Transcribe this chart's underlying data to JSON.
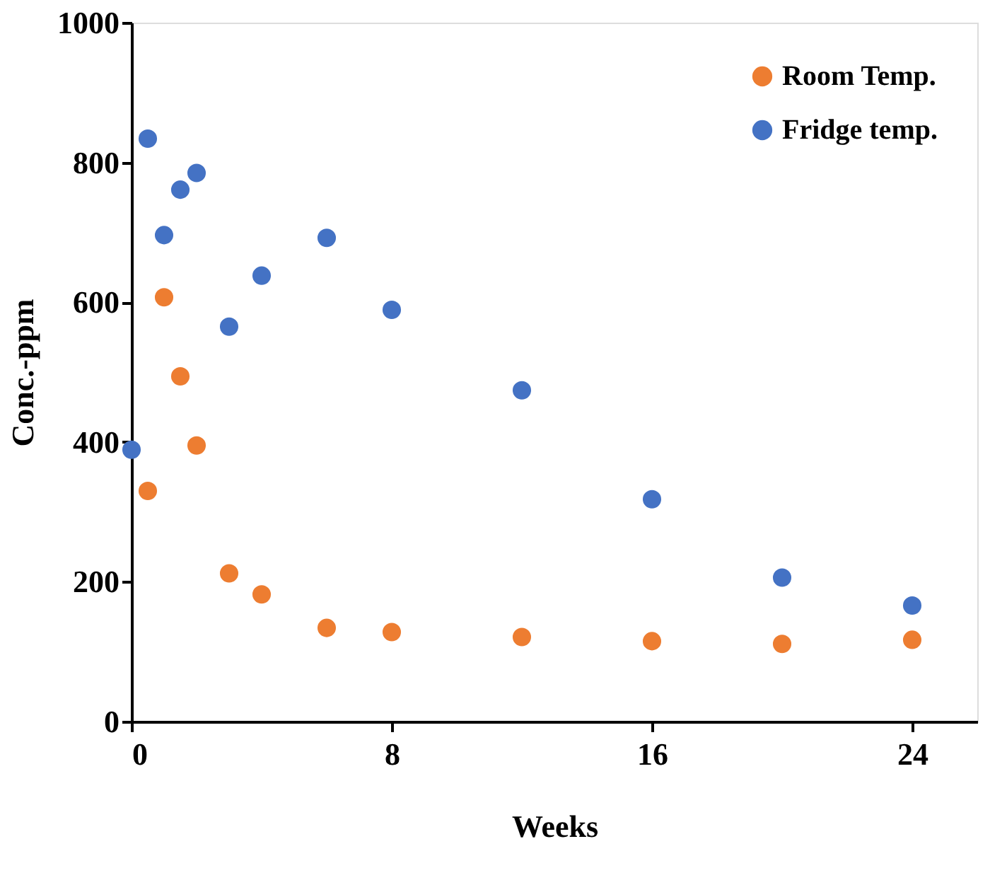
{
  "chart_data": {
    "type": "scatter",
    "xlabel": "Weeks",
    "ylabel": "Conc.-ppm",
    "xlim": [
      0,
      26
    ],
    "xticks": [
      0,
      8,
      16,
      24
    ],
    "ylim": [
      0,
      1000
    ],
    "yticks": [
      0,
      200,
      400,
      600,
      800,
      1000
    ],
    "grid": false,
    "legend": "top right",
    "marker": "circle",
    "series": [
      {
        "name": "Room Temp.",
        "color": "#ed7d31",
        "x": [
          0.5,
          1,
          1.5,
          2,
          3,
          4,
          6,
          8,
          12,
          16,
          20,
          24
        ],
        "values": [
          330,
          607,
          494,
          395,
          212,
          182,
          134,
          128,
          121,
          115,
          111,
          117
        ]
      },
      {
        "name": "Fridge temp.",
        "color": "#4472c4",
        "x": [
          0,
          0.5,
          1,
          1.5,
          2,
          3,
          4,
          6,
          8,
          12,
          16,
          20,
          24
        ],
        "values": [
          389,
          834,
          696,
          761,
          785,
          565,
          638,
          692,
          589,
          474,
          318,
          206,
          166
        ]
      }
    ]
  }
}
